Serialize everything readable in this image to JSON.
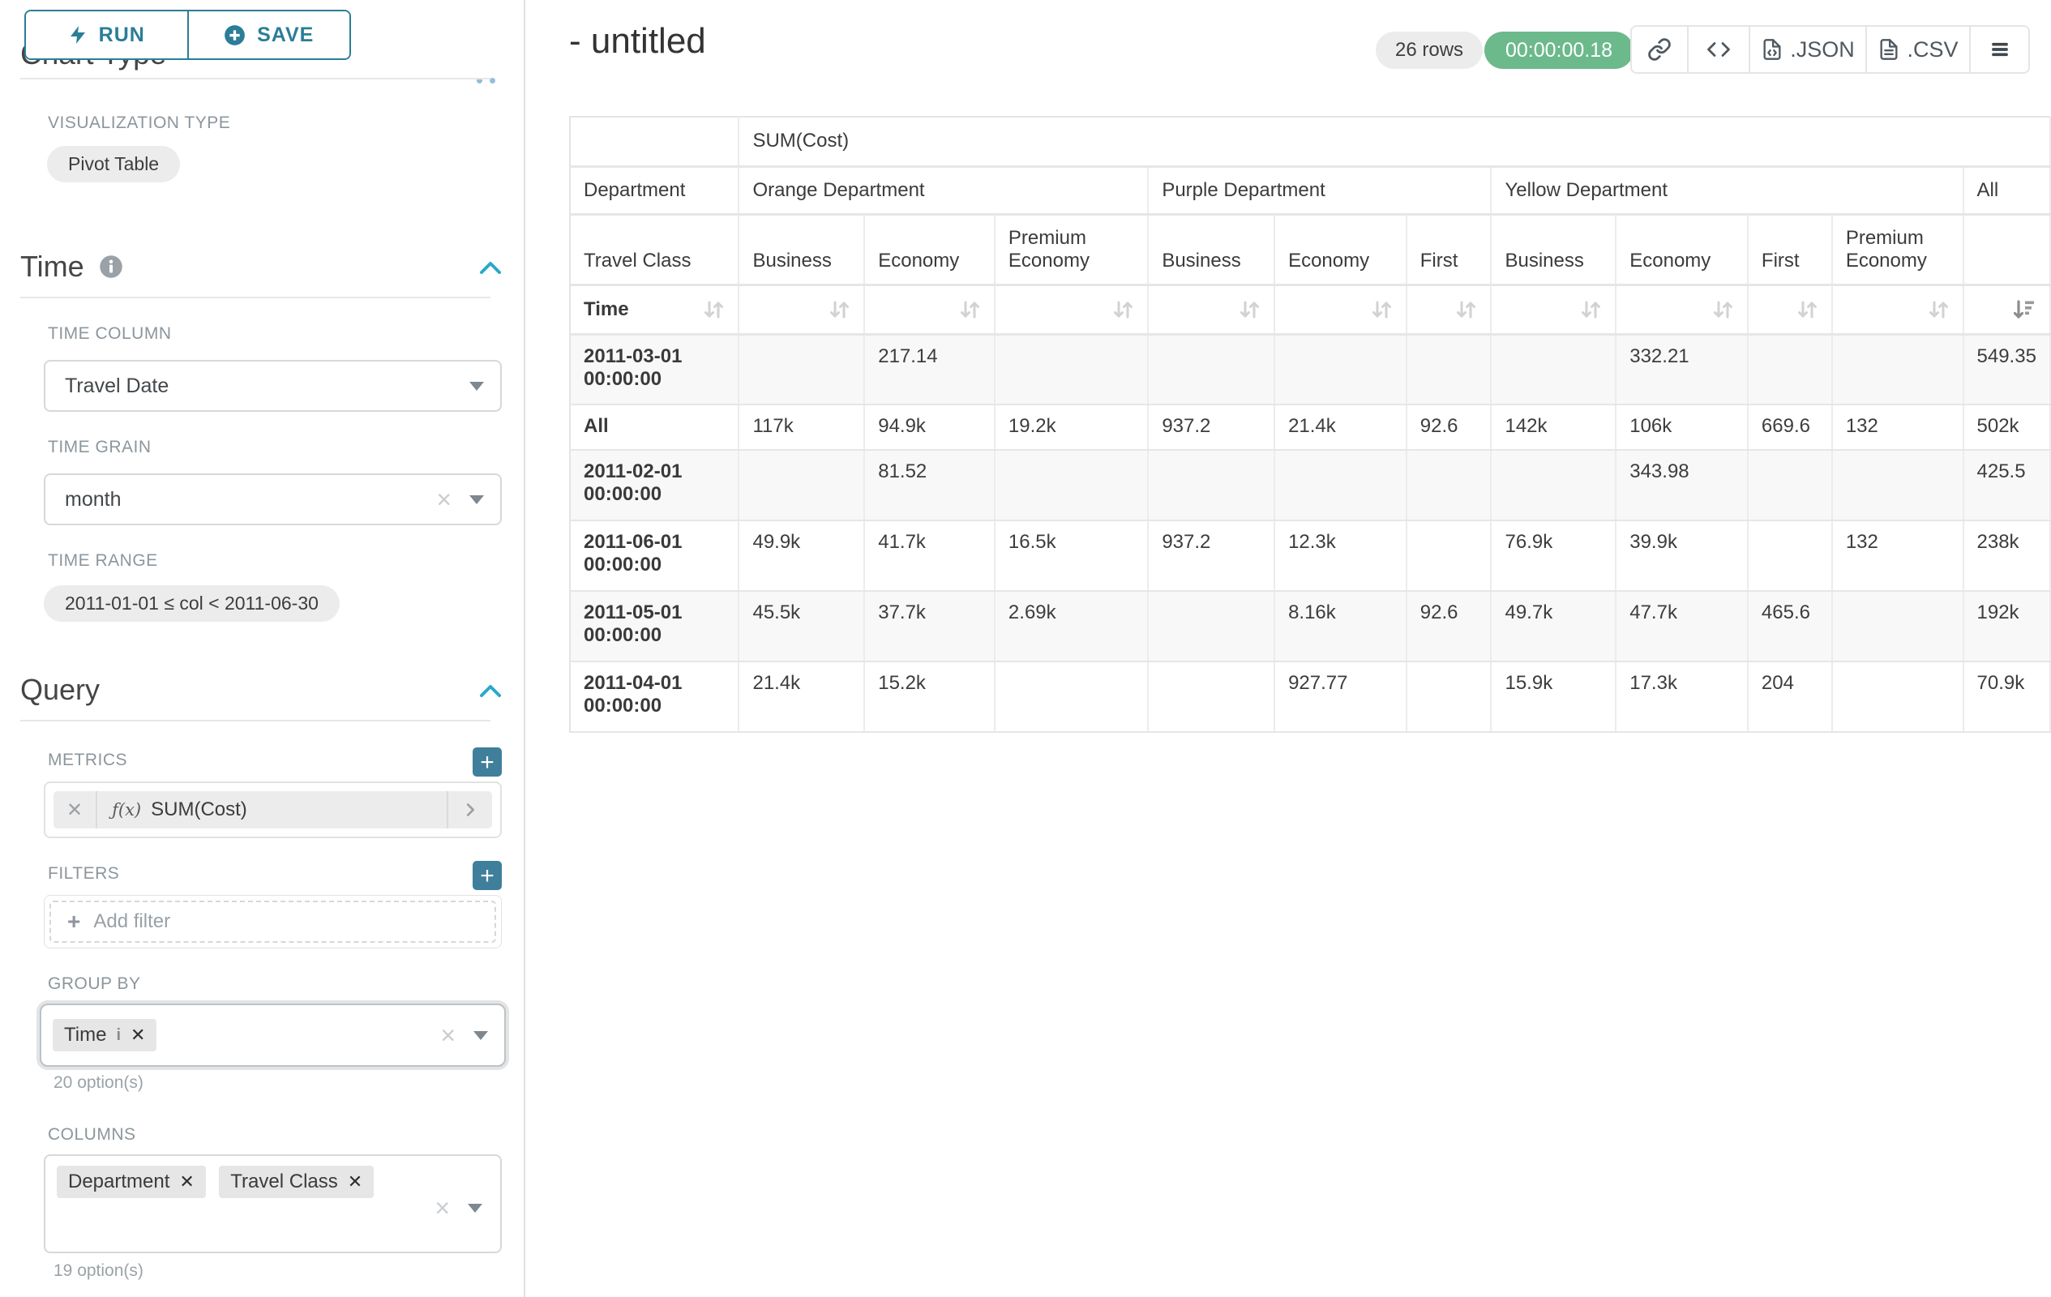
{
  "colors": {
    "accent_teal": "#2b7d98",
    "accent_bright_blue": "#2aa8cd",
    "success_green": "#6cb98c",
    "plus_button_teal": "#3f7f9b"
  },
  "left_panel": {
    "run_button": "RUN",
    "save_button": "SAVE",
    "chart_type_section": {
      "title": "Chart Type",
      "visualization_type_label": "VISUALIZATION TYPE",
      "visualization_type_value": "Pivot Table"
    },
    "time_section": {
      "title": "Time",
      "time_column_label": "TIME COLUMN",
      "time_column_value": "Travel Date",
      "time_grain_label": "TIME GRAIN",
      "time_grain_value": "month",
      "time_range_label": "TIME RANGE",
      "time_range_value": "2011-01-01 ≤ col < 2011-06-30"
    },
    "query_section": {
      "title": "Query",
      "metrics_label": "METRICS",
      "metric_fx": "ƒ(x)",
      "metric_value": "SUM(Cost)",
      "filters_label": "FILTERS",
      "add_filter_placeholder": "Add filter",
      "group_by_label": "GROUP BY",
      "group_by_values": [
        "Time"
      ],
      "group_by_hint": "20 option(s)",
      "columns_label": "COLUMNS",
      "columns_values": [
        "Department",
        "Travel Class"
      ],
      "columns_hint": "19 option(s)"
    }
  },
  "main": {
    "title": "- untitled",
    "row_count_badge": "26 rows",
    "query_timer": "00:00:00.18",
    "export_json_label": ".JSON",
    "export_csv_label": ".CSV"
  },
  "pivot": {
    "metric_header": "SUM(Cost)",
    "column_dimension": "Department",
    "row_subdimension": "Travel Class",
    "row_dimension": "Time",
    "groups": [
      {
        "name": "Orange Department",
        "cols": [
          "Business",
          "Economy",
          "Premium Economy"
        ]
      },
      {
        "name": "Purple Department",
        "cols": [
          "Business",
          "Economy",
          "First"
        ]
      },
      {
        "name": "Yellow Department",
        "cols": [
          "Business",
          "Economy",
          "First",
          "Premium Economy"
        ]
      },
      {
        "name": "All",
        "cols": [
          ""
        ]
      }
    ],
    "rows": [
      {
        "label": "2011-03-01 00:00:00",
        "values": [
          "",
          "217.14",
          "",
          "",
          "",
          "",
          "",
          "332.21",
          "",
          "",
          "549.35"
        ]
      },
      {
        "label": "All",
        "values": [
          "117k",
          "94.9k",
          "19.2k",
          "937.2",
          "21.4k",
          "92.6",
          "142k",
          "106k",
          "669.6",
          "132",
          "502k"
        ]
      },
      {
        "label": "2011-02-01 00:00:00",
        "values": [
          "",
          "81.52",
          "",
          "",
          "",
          "",
          "",
          "343.98",
          "",
          "",
          "425.5"
        ]
      },
      {
        "label": "2011-06-01 00:00:00",
        "values": [
          "49.9k",
          "41.7k",
          "16.5k",
          "937.2",
          "12.3k",
          "",
          "76.9k",
          "39.9k",
          "",
          "132",
          "238k"
        ]
      },
      {
        "label": "2011-05-01 00:00:00",
        "values": [
          "45.5k",
          "37.7k",
          "2.69k",
          "",
          "8.16k",
          "92.6",
          "49.7k",
          "47.7k",
          "465.6",
          "",
          "192k"
        ]
      },
      {
        "label": "2011-04-01 00:00:00",
        "values": [
          "21.4k",
          "15.2k",
          "",
          "",
          "927.77",
          "",
          "15.9k",
          "17.3k",
          "204",
          "",
          "70.9k"
        ]
      }
    ]
  }
}
